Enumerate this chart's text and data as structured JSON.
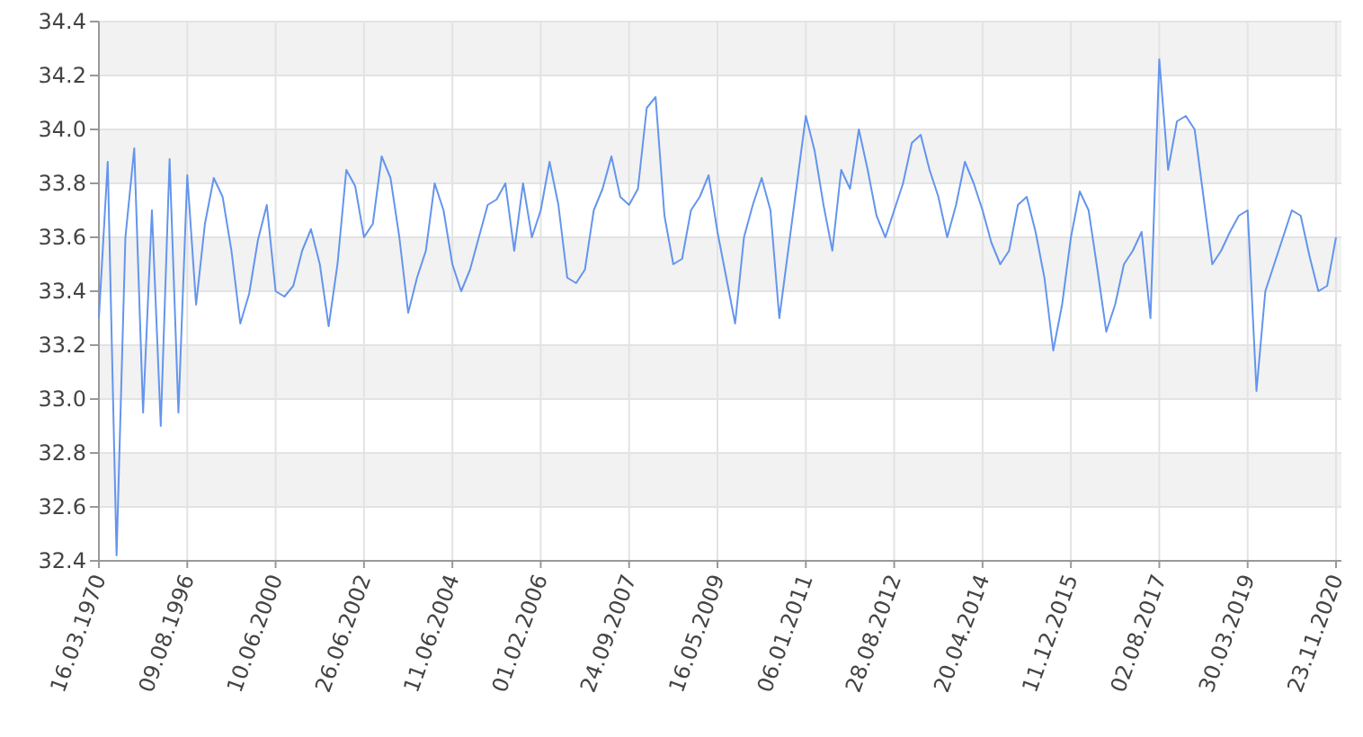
{
  "chart_data": {
    "type": "line",
    "categories": [
      "16.03.1970",
      null,
      null,
      null,
      null,
      null,
      null,
      null,
      null,
      null,
      "09.08.1996",
      null,
      null,
      null,
      null,
      null,
      null,
      null,
      null,
      null,
      "10.06.2000",
      null,
      null,
      null,
      null,
      null,
      null,
      null,
      null,
      null,
      "26.06.2002",
      null,
      null,
      null,
      null,
      null,
      null,
      null,
      null,
      null,
      "11.06.2004",
      null,
      null,
      null,
      null,
      null,
      null,
      null,
      null,
      null,
      "01.02.2006",
      null,
      null,
      null,
      null,
      null,
      null,
      null,
      null,
      null,
      "24.09.2007",
      null,
      null,
      null,
      null,
      null,
      null,
      null,
      null,
      null,
      "16.05.2009",
      null,
      null,
      null,
      null,
      null,
      null,
      null,
      null,
      null,
      "06.01.2011",
      null,
      null,
      null,
      null,
      null,
      null,
      null,
      null,
      null,
      "28.08.2012",
      null,
      null,
      null,
      null,
      null,
      null,
      null,
      null,
      null,
      "20.04.2014",
      null,
      null,
      null,
      null,
      null,
      null,
      null,
      null,
      null,
      "11.12.2015",
      null,
      null,
      null,
      null,
      null,
      null,
      null,
      null,
      null,
      "02.08.2017",
      null,
      null,
      null,
      null,
      null,
      null,
      null,
      null,
      null,
      "30.03.2019",
      null,
      null,
      null,
      null,
      null,
      null,
      null,
      null,
      null,
      "23.11.2020"
    ],
    "series": [
      {
        "color": "#6495ed",
        "values": [
          33.3,
          33.88,
          32.42,
          33.6,
          33.93,
          32.95,
          33.7,
          32.9,
          33.89,
          32.95,
          33.83,
          33.35,
          33.65,
          33.82,
          33.75,
          33.55,
          33.28,
          33.39,
          33.59,
          33.72,
          33.4,
          33.38,
          33.42,
          33.55,
          33.63,
          33.5,
          33.27,
          33.5,
          33.85,
          33.79,
          33.6,
          33.65,
          33.9,
          33.82,
          33.6,
          33.32,
          33.45,
          33.55,
          33.8,
          33.7,
          33.5,
          33.4,
          33.48,
          33.6,
          33.72,
          33.74,
          33.8,
          33.55,
          33.8,
          33.6,
          33.7,
          33.88,
          33.72,
          33.45,
          33.43,
          33.48,
          33.7,
          33.78,
          33.9,
          33.75,
          33.72,
          33.78,
          34.08,
          34.12,
          33.68,
          33.5,
          33.52,
          33.7,
          33.75,
          33.83,
          33.62,
          33.45,
          33.28,
          33.6,
          33.72,
          33.82,
          33.7,
          33.3,
          33.55,
          33.8,
          34.05,
          33.92,
          33.72,
          33.55,
          33.85,
          33.78,
          34.0,
          33.85,
          33.68,
          33.6,
          33.7,
          33.8,
          33.95,
          33.98,
          33.85,
          33.75,
          33.6,
          33.72,
          33.88,
          33.8,
          33.7,
          33.58,
          33.5,
          33.55,
          33.72,
          33.75,
          33.62,
          33.45,
          33.18,
          33.35,
          33.6,
          33.77,
          33.7,
          33.48,
          33.25,
          33.35,
          33.5,
          33.55,
          33.62,
          33.3,
          34.26,
          33.85,
          34.03,
          34.05,
          34.0,
          33.75,
          33.5,
          33.55,
          33.62,
          33.68,
          33.7,
          33.03,
          33.4,
          33.5,
          33.6,
          33.7,
          33.68,
          33.53,
          33.4,
          33.42,
          33.6
        ]
      }
    ],
    "ylim": [
      32.4,
      34.4
    ],
    "yticks": [
      32.4,
      32.6,
      32.8,
      {
        "value": 33,
        "label": "33.0"
      },
      33.2,
      33.4,
      33.6,
      33.8,
      {
        "value": 34,
        "label": "34.0"
      },
      34.2,
      34.4
    ],
    "grid": true,
    "marker": "none",
    "line_style": "solid"
  }
}
